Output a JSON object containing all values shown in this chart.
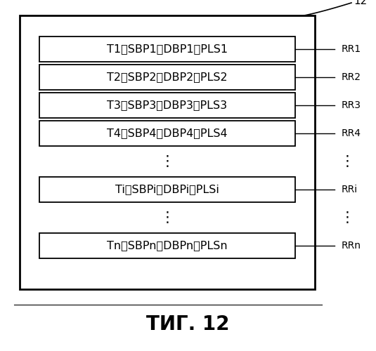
{
  "fig_label": "12",
  "caption": "ΤИГ. 12",
  "rows": [
    {
      "label": "T1、SBP1、DBP1、PLS1",
      "tag": "RR1"
    },
    {
      "label": "T2、SBP2、DBP2、PLS2",
      "tag": "RR2"
    },
    {
      "label": "T3、SBP3、DBP3、PLS3",
      "tag": "RR3"
    },
    {
      "label": "T4、SBP4、DBP4、PLS4",
      "tag": "RR4"
    },
    {
      "label": "Ti、SBPi、DBPi、PLSi",
      "tag": "RRi"
    },
    {
      "label": "Tn、SBPn、DBPn、PLSn",
      "tag": "RRn"
    }
  ],
  "bg_color": "#ffffff",
  "box_fill": "#ffffff",
  "box_edge": "#000000",
  "font_size": 11.5,
  "tag_font_size": 10,
  "caption_font_size": 20,
  "fig_label_fontsize": 11
}
